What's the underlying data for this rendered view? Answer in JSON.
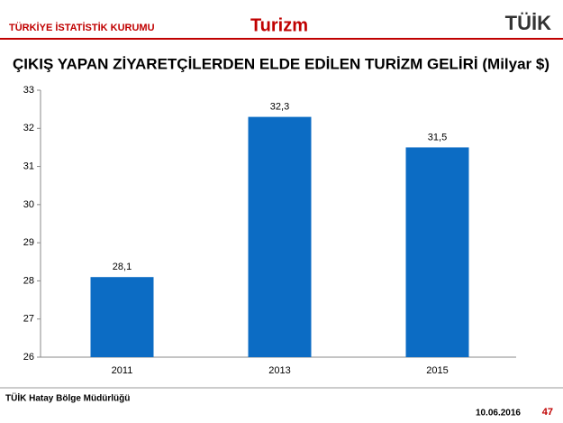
{
  "header": {
    "institution": "TÜRKİYE İSTATİSTİK KURUMU",
    "section": "Turizm",
    "logo": "TÜİK"
  },
  "chart_data": {
    "type": "bar",
    "title": "ÇIKIŞ YAPAN ZİYARETÇİLERDEN ELDE EDİLEN TURİZM GELİRİ (Milyar $)",
    "categories": [
      "2011",
      "2013",
      "2015"
    ],
    "values": [
      28.1,
      32.3,
      31.5
    ],
    "value_labels": [
      "28,1",
      "32,3",
      "31,5"
    ],
    "color": "#0c6cc4",
    "ylim": [
      26,
      33
    ],
    "yticks": [
      26,
      27,
      28,
      29,
      30,
      31,
      32,
      33
    ],
    "grid": false
  },
  "footer": {
    "office": "TÜİK Hatay Bölge Müdürlüğü",
    "date": "10.06.2016",
    "page": "47"
  }
}
